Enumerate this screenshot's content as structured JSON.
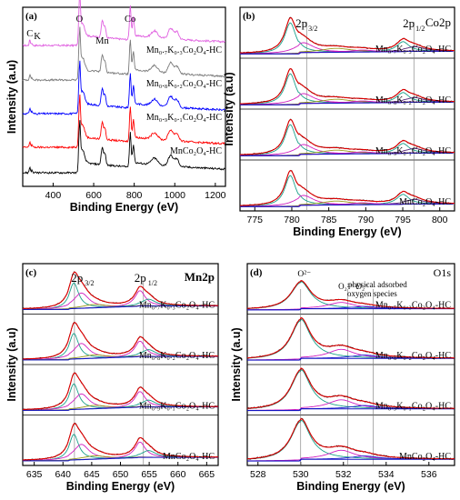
{
  "chart_data": [
    {
      "type": "line",
      "panel_label": "(a)",
      "xlabel": "Binding Energy (eV)",
      "ylabel": "Intensity (a.u)",
      "xlim": [
        250,
        1250
      ],
      "xticks": [
        "400",
        "600",
        "800",
        "1000",
        "1200"
      ],
      "peak_labels": [
        {
          "text": "C",
          "x": 285
        },
        {
          "text": "K",
          "x": 295
        },
        {
          "text": "O",
          "x": 530
        },
        {
          "text": "Mn",
          "x": 642
        },
        {
          "text": "Co",
          "x": 780
        }
      ],
      "series": [
        {
          "name": "Mn₀.₇K₀.₃Co₂O₄-HC",
          "color": "#e060e0"
        },
        {
          "name": "Mn₀.₈K₀.₂Co₂O₄-HC",
          "color": "#7a7a7a"
        },
        {
          "name": "Mn₀.₉K₀.₁Co₂O₄-HC",
          "color": "#0000ff"
        },
        {
          "name": "MnCo₂O₄-HC",
          "color": "#ff0000"
        },
        {
          "name": "",
          "color": "#000000"
        }
      ],
      "series_labels": [
        "Mn₀.₇K₀.₃Co₂O₄-HC",
        "Mn₀.₈K₀.₂Co₂O₄-HC",
        "Mn₀.₉K₀.₁Co₂O₄-HC",
        "MnCo₂O₄-HC"
      ]
    },
    {
      "type": "line",
      "panel_label": "(b)",
      "element": "Co2p",
      "xlabel": "Binding Energy (eV)",
      "ylabel": "Intensity (a.u)",
      "xlim": [
        773,
        802
      ],
      "xticks": [
        "775",
        "780",
        "785",
        "790",
        "795",
        "800"
      ],
      "peak_labels": [
        {
          "main": "2p",
          "sub": "3/2",
          "x": 781.5
        },
        {
          "main": "2p",
          "sub": "1/2",
          "x": 796
        }
      ],
      "vlines": [
        782,
        796.5
      ],
      "fit_peaks_eV": [
        779.8,
        781.5,
        786.0,
        795.0,
        796.5
      ],
      "series_labels": [
        "Mn₀.₇K₀.₃Co₂O₄-HC",
        "Mn₀.₈K₀.₂Co₂O₄-HC",
        "Mn₀.₉K₀.₁Co₂O₄-HC",
        "MnCo₂O₄-HC"
      ]
    },
    {
      "type": "line",
      "panel_label": "(c)",
      "element": "Mn2p",
      "xlabel": "Binding Energy (eV)",
      "ylabel": "Intensity (a.u)",
      "xlim": [
        633,
        667
      ],
      "xticks": [
        "635",
        "640",
        "645",
        "650",
        "655",
        "660",
        "665"
      ],
      "peak_labels": [
        {
          "main": "2p",
          "sub": "3/2",
          "x": 643
        },
        {
          "main": "2p",
          "sub": "1/2",
          "x": 654
        }
      ],
      "vlines": [
        642,
        654
      ],
      "fit_peaks_eV": [
        641.8,
        643.2,
        645.0,
        653.2,
        654.8
      ],
      "series_labels": [
        "Mn₀.₇K₀.₃Co₂O₄-HC",
        "Mn₀.₈K₀.₂Co₂O₄-HC",
        "Mn₀.₉K₀.₁Co₂O₄-HC",
        "MnCo₂O₄-HC"
      ]
    },
    {
      "type": "line",
      "panel_label": "(d)",
      "element": "O1s",
      "xlabel": "Binding Energy (eV)",
      "ylabel": "Intensity (a.u)",
      "xlim": [
        527.5,
        537.2
      ],
      "xticks": [
        "528",
        "530",
        "532",
        "534",
        "536"
      ],
      "peak_labels": [
        {
          "text": "O²⁻",
          "x": 530
        },
        {
          "text": "O₂²⁻ O₂⁻",
          "x": 532.1
        },
        {
          "text": "physical adsorbed",
          "x": 533.6
        },
        {
          "text": "oxygen species",
          "x": 533.6
        }
      ],
      "vlines": [
        530,
        532.2,
        533.4
      ],
      "fit_peaks_eV": [
        530.0,
        531.8,
        533.0
      ],
      "series_labels": [
        "Mn₀.₇K₀.₃Co₂O₄-HC",
        "Mn₀.₈K₀.₂Co₂O₄-HC",
        "Mn₀.₉K₀.₁Co₂O₄-HC",
        "MnCo₂O₄-HC"
      ]
    }
  ]
}
